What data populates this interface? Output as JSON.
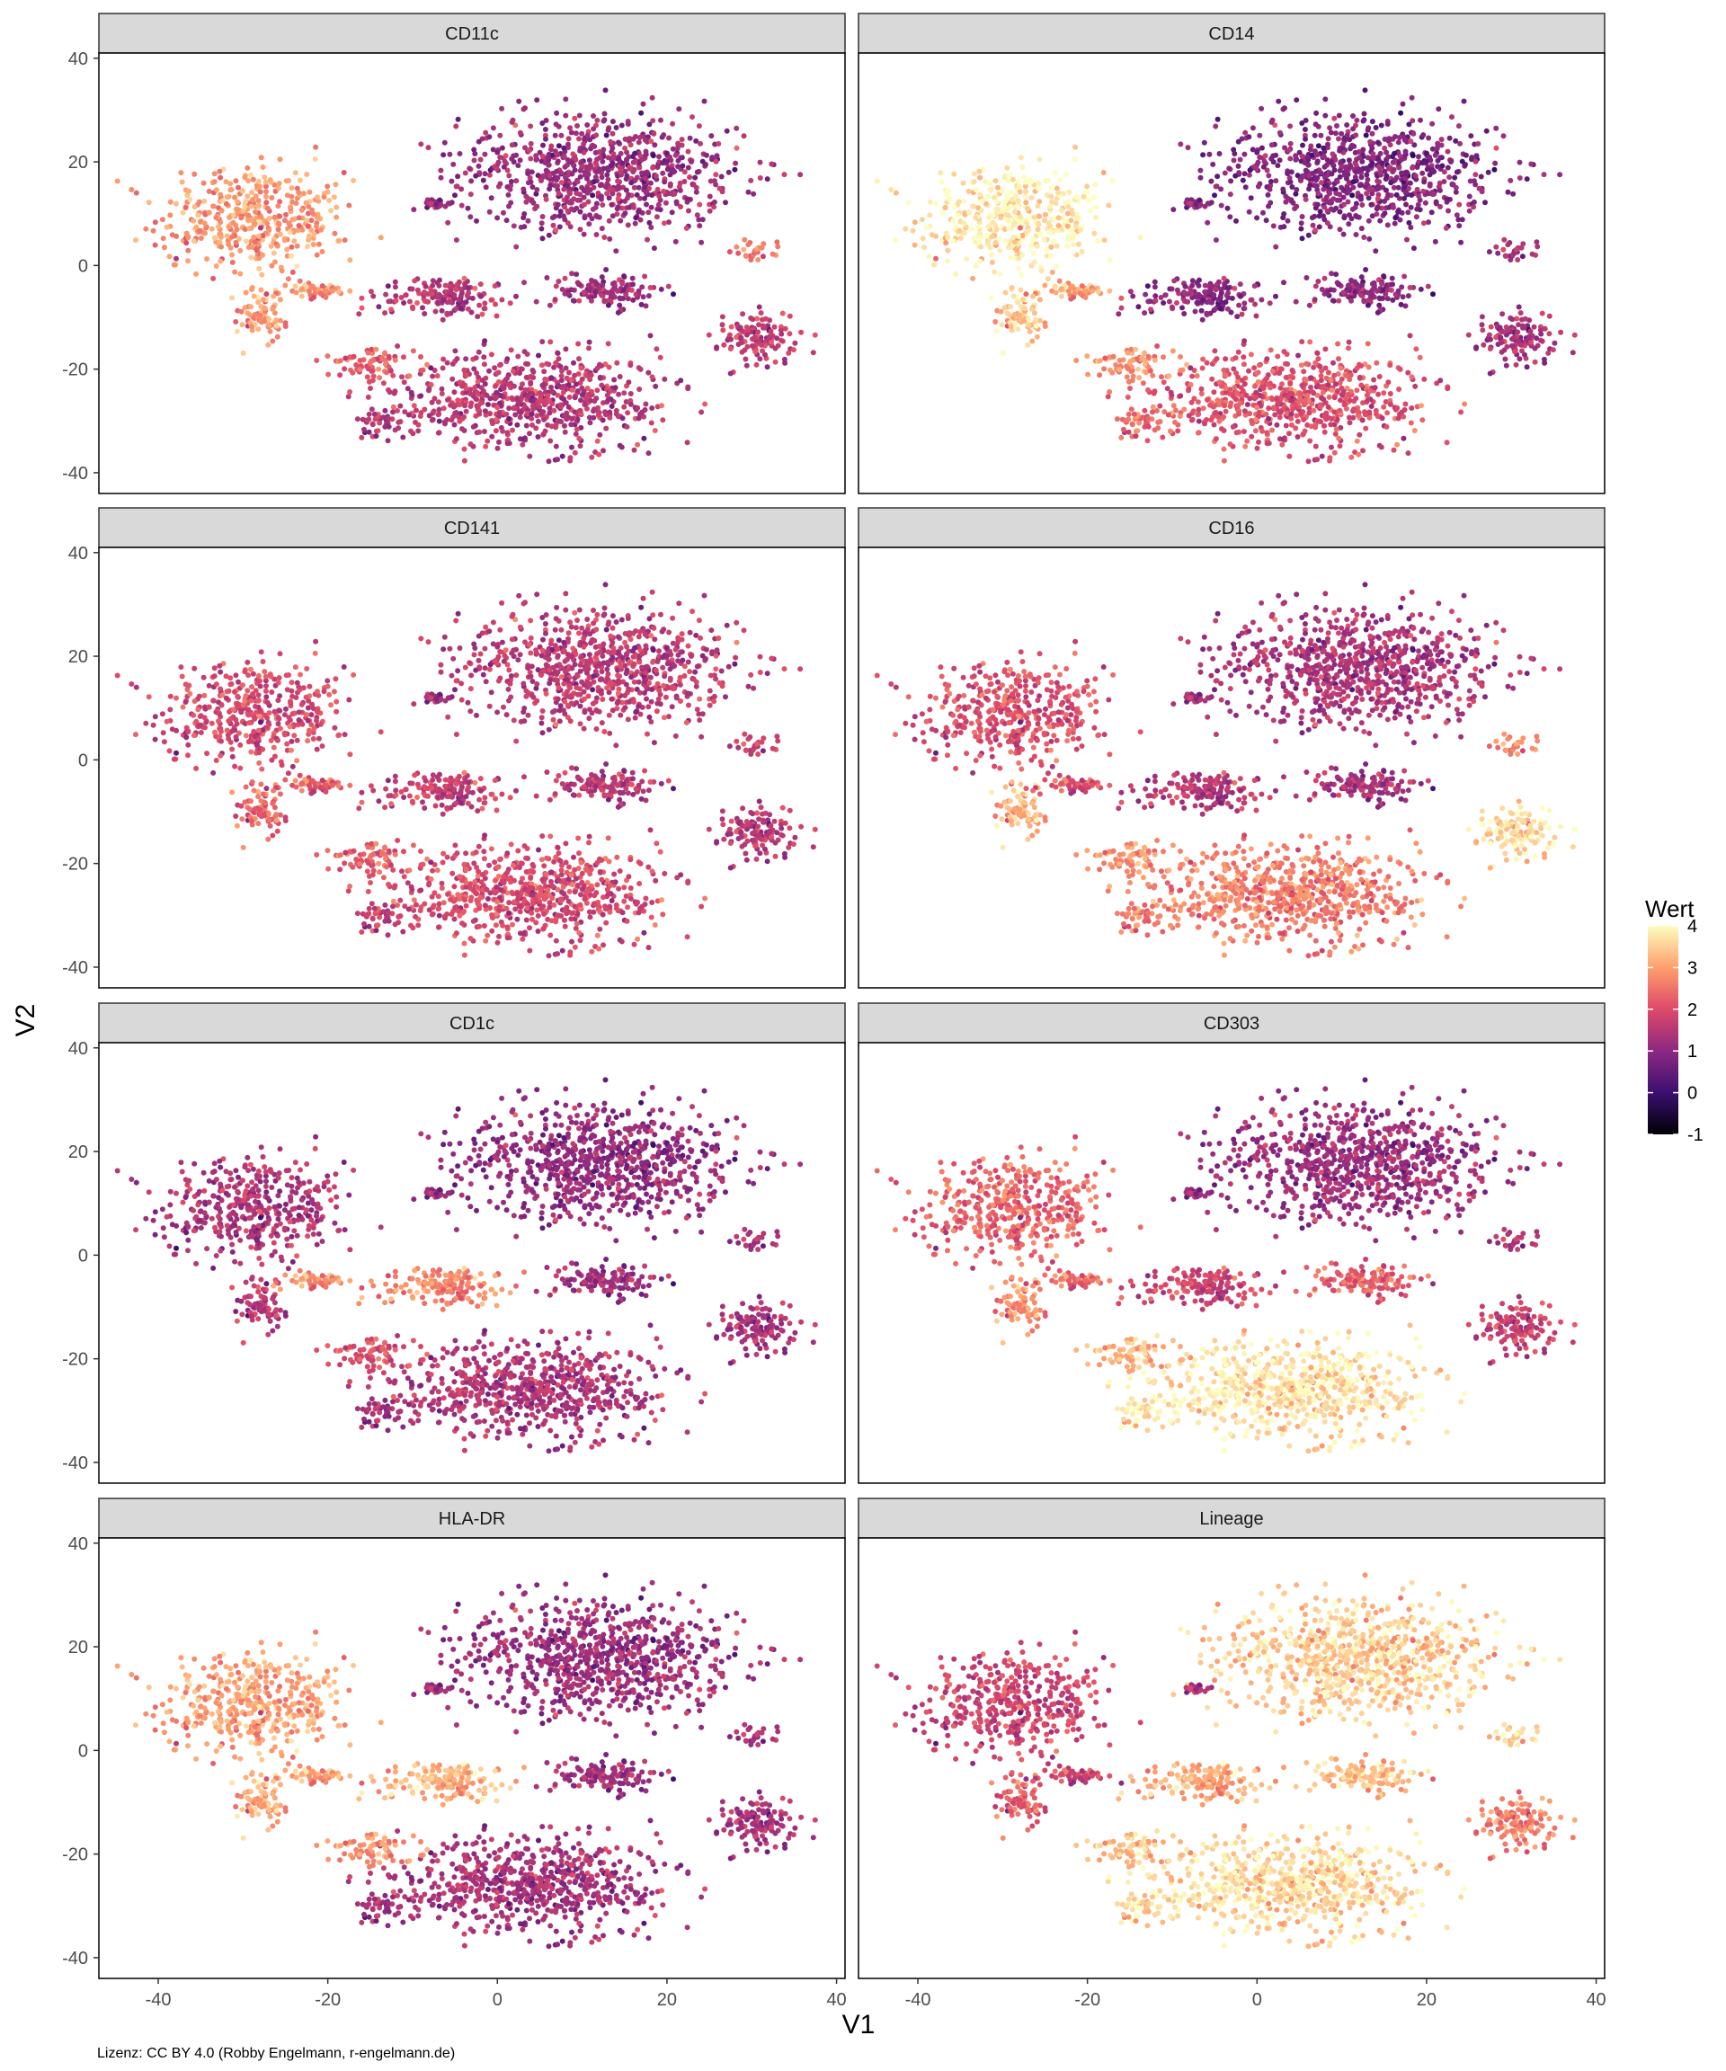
{
  "chart_data": {
    "type": "scatter",
    "xlabel": "V1",
    "ylabel": "V2",
    "xlim": [
      -47,
      41
    ],
    "ylim": [
      -44,
      41
    ],
    "xticks": [
      -40,
      -20,
      0,
      20,
      40
    ],
    "yticks": [
      -40,
      -20,
      0,
      20,
      40
    ],
    "panels": [
      {
        "name": "CD11c"
      },
      {
        "name": "CD14"
      },
      {
        "name": "CD141"
      },
      {
        "name": "CD16"
      },
      {
        "name": "CD1c"
      },
      {
        "name": "CD303"
      },
      {
        "name": "HLA-DR"
      },
      {
        "name": "Lineage"
      }
    ],
    "clusters": [
      {
        "id": "left_tree_top",
        "center": [
          -29,
          9
        ],
        "spread": [
          10,
          9
        ],
        "weight": 0.16
      },
      {
        "id": "left_tree_trunk",
        "center": [
          -28,
          -10
        ],
        "spread": [
          2.5,
          6
        ],
        "weight": 0.03
      },
      {
        "id": "left_small",
        "center": [
          -21,
          -5
        ],
        "spread": [
          4,
          1.5
        ],
        "weight": 0.02
      },
      {
        "id": "top_right_big",
        "center": [
          12,
          18
        ],
        "spread": [
          15,
          10
        ],
        "weight": 0.3
      },
      {
        "id": "small_blob",
        "center": [
          -7,
          12
        ],
        "spread": [
          1.5,
          1
        ],
        "weight": 0.01
      },
      {
        "id": "mid_band",
        "center": [
          -6,
          -6
        ],
        "spread": [
          7,
          3.5
        ],
        "weight": 0.06
      },
      {
        "id": "mid_right",
        "center": [
          13,
          -5
        ],
        "spread": [
          6,
          3
        ],
        "weight": 0.05
      },
      {
        "id": "bottom_big",
        "center": [
          4,
          -26
        ],
        "spread": [
          14,
          8
        ],
        "weight": 0.25
      },
      {
        "id": "far_right",
        "center": [
          31,
          -14
        ],
        "spread": [
          4.5,
          4.5
        ],
        "weight": 0.05
      },
      {
        "id": "bridge",
        "center": [
          -14,
          -19
        ],
        "spread": [
          5,
          2.5
        ],
        "weight": 0.03
      },
      {
        "id": "right_tail",
        "center": [
          30,
          3
        ],
        "spread": [
          3,
          2
        ],
        "weight": 0.01
      },
      {
        "id": "bottom_left_tail",
        "center": [
          -13,
          -30
        ],
        "spread": [
          4,
          3
        ],
        "weight": 0.02
      }
    ],
    "expression": {
      "CD11c": {
        "left_tree_top": 2.9,
        "left_tree_trunk": 2.9,
        "left_small": 2.8,
        "top_right_big": 1.2,
        "small_blob": 1.1,
        "mid_band": 1.5,
        "mid_right": 1.2,
        "bottom_big": 1.5,
        "far_right": 1.6,
        "bridge": 2.2,
        "right_tail": 2.4,
        "bottom_left_tail": 1.5
      },
      "CD14": {
        "left_tree_top": 3.8,
        "left_tree_trunk": 3.4,
        "left_small": 3.0,
        "top_right_big": 0.9,
        "small_blob": 1.0,
        "mid_band": 1.0,
        "mid_right": 1.0,
        "bottom_big": 2.0,
        "far_right": 1.3,
        "bridge": 2.8,
        "right_tail": 1.2,
        "bottom_left_tail": 2.4
      },
      "CD141": {
        "left_tree_top": 1.9,
        "left_tree_trunk": 2.3,
        "left_small": 2.2,
        "top_right_big": 1.6,
        "small_blob": 1.2,
        "mid_band": 1.7,
        "mid_right": 1.5,
        "bottom_big": 1.9,
        "far_right": 1.5,
        "bridge": 2.2,
        "right_tail": 1.6,
        "bottom_left_tail": 1.7
      },
      "CD16": {
        "left_tree_top": 2.0,
        "left_tree_trunk": 3.2,
        "left_small": 2.0,
        "top_right_big": 1.4,
        "small_blob": 1.3,
        "mid_band": 1.5,
        "mid_right": 1.3,
        "bottom_big": 2.6,
        "far_right": 3.6,
        "bridge": 2.8,
        "right_tail": 2.6,
        "bottom_left_tail": 2.6
      },
      "CD1c": {
        "left_tree_top": 1.4,
        "left_tree_trunk": 1.5,
        "left_small": 2.8,
        "top_right_big": 1.1,
        "small_blob": 1.1,
        "mid_band": 2.7,
        "mid_right": 1.2,
        "bottom_big": 1.4,
        "far_right": 1.3,
        "bridge": 2.0,
        "right_tail": 1.2,
        "bottom_left_tail": 1.3
      },
      "CD303": {
        "left_tree_top": 2.3,
        "left_tree_trunk": 2.8,
        "left_small": 2.4,
        "top_right_big": 1.2,
        "small_blob": 1.1,
        "mid_band": 1.8,
        "mid_right": 2.2,
        "bottom_big": 3.7,
        "far_right": 1.7,
        "bridge": 3.2,
        "right_tail": 1.3,
        "bottom_left_tail": 3.8
      },
      "HLA-DR": {
        "left_tree_top": 3.0,
        "left_tree_trunk": 3.1,
        "left_small": 3.0,
        "top_right_big": 1.2,
        "small_blob": 1.2,
        "mid_band": 3.2,
        "mid_right": 1.2,
        "bottom_big": 1.3,
        "far_right": 1.3,
        "bridge": 2.8,
        "right_tail": 1.2,
        "bottom_left_tail": 1.3
      },
      "Lineage": {
        "left_tree_top": 1.8,
        "left_tree_trunk": 2.2,
        "left_small": 1.8,
        "top_right_big": 3.5,
        "small_blob": 1.4,
        "mid_band": 3.1,
        "mid_right": 3.3,
        "bottom_big": 3.6,
        "far_right": 2.6,
        "bridge": 3.3,
        "right_tail": 3.4,
        "bottom_left_tail": 3.6
      }
    },
    "colorbar": {
      "title": "Wert",
      "min": -1,
      "max": 4,
      "ticks": [
        4,
        3,
        2,
        1,
        0,
        -1
      ],
      "colors": [
        "#000004",
        "#3b0f70",
        "#8c2981",
        "#de4968",
        "#fe9f6d",
        "#fcfdbf"
      ]
    }
  },
  "license": "Lizenz: CC BY 4.0 (Robby Engelmann, r-engelmann.de)"
}
